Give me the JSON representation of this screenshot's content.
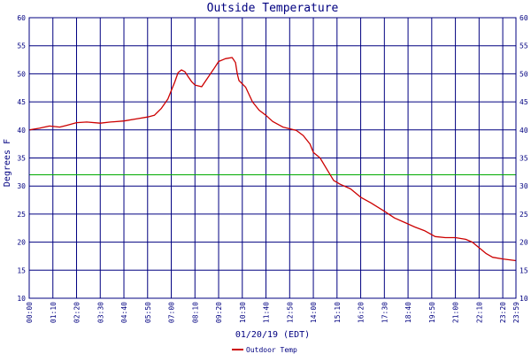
{
  "chart_data": {
    "type": "line",
    "title": "Outside Temperature",
    "xlabel": "01/20/19 (EDT)",
    "ylabel": "Degrees F",
    "ylim": [
      10,
      60
    ],
    "y_ticks": [
      10,
      15,
      20,
      25,
      30,
      35,
      40,
      45,
      50,
      55,
      60
    ],
    "x_ticks": [
      "00:00",
      "01:10",
      "02:20",
      "03:30",
      "04:40",
      "05:50",
      "07:00",
      "08:10",
      "09:20",
      "10:30",
      "11:40",
      "12:50",
      "14:00",
      "15:10",
      "16:20",
      "17:30",
      "18:40",
      "19:50",
      "21:00",
      "22:10",
      "23:20",
      "23:59"
    ],
    "x_tick_minutes": [
      0,
      70,
      140,
      210,
      280,
      350,
      420,
      490,
      560,
      630,
      700,
      770,
      840,
      910,
      980,
      1050,
      1120,
      1190,
      1260,
      1330,
      1400,
      1439
    ],
    "xlim_minutes": [
      0,
      1439
    ],
    "reference_line": {
      "value": 32,
      "color": "#00aa00"
    },
    "grid": true,
    "legend_position": "bottom",
    "colors": {
      "axes": "#000080",
      "grid": "#000080",
      "series": "#cc0000"
    },
    "series": [
      {
        "name": "Outdoor Temp",
        "color": "#cc0000",
        "x_minutes": [
          0,
          30,
          60,
          90,
          110,
          140,
          170,
          210,
          240,
          280,
          320,
          350,
          370,
          390,
          410,
          420,
          430,
          440,
          450,
          460,
          470,
          480,
          490,
          510,
          530,
          545,
          560,
          580,
          600,
          610,
          615,
          620,
          640,
          660,
          680,
          700,
          720,
          750,
          770,
          790,
          810,
          830,
          840,
          860,
          880,
          900,
          920,
          950,
          980,
          1010,
          1050,
          1080,
          1110,
          1140,
          1170,
          1200,
          1230,
          1260,
          1290,
          1310,
          1330,
          1350,
          1370,
          1400,
          1439
        ],
        "values": [
          40.0,
          40.3,
          40.7,
          40.5,
          40.8,
          41.3,
          41.4,
          41.2,
          41.4,
          41.6,
          42.0,
          42.3,
          42.6,
          43.8,
          45.5,
          47.0,
          48.5,
          50.2,
          50.7,
          50.4,
          49.5,
          48.6,
          48.0,
          47.7,
          49.5,
          50.8,
          52.2,
          52.7,
          52.9,
          52.0,
          50.0,
          48.8,
          47.6,
          45.0,
          43.5,
          42.6,
          41.5,
          40.5,
          40.2,
          39.9,
          39.0,
          37.5,
          36.0,
          35.0,
          33.0,
          31.0,
          30.3,
          29.5,
          28.0,
          27.0,
          25.5,
          24.3,
          23.5,
          22.7,
          22.0,
          21.0,
          20.8,
          20.8,
          20.5,
          20.0,
          19.0,
          18.0,
          17.3,
          17.0,
          16.7
        ]
      }
    ]
  }
}
